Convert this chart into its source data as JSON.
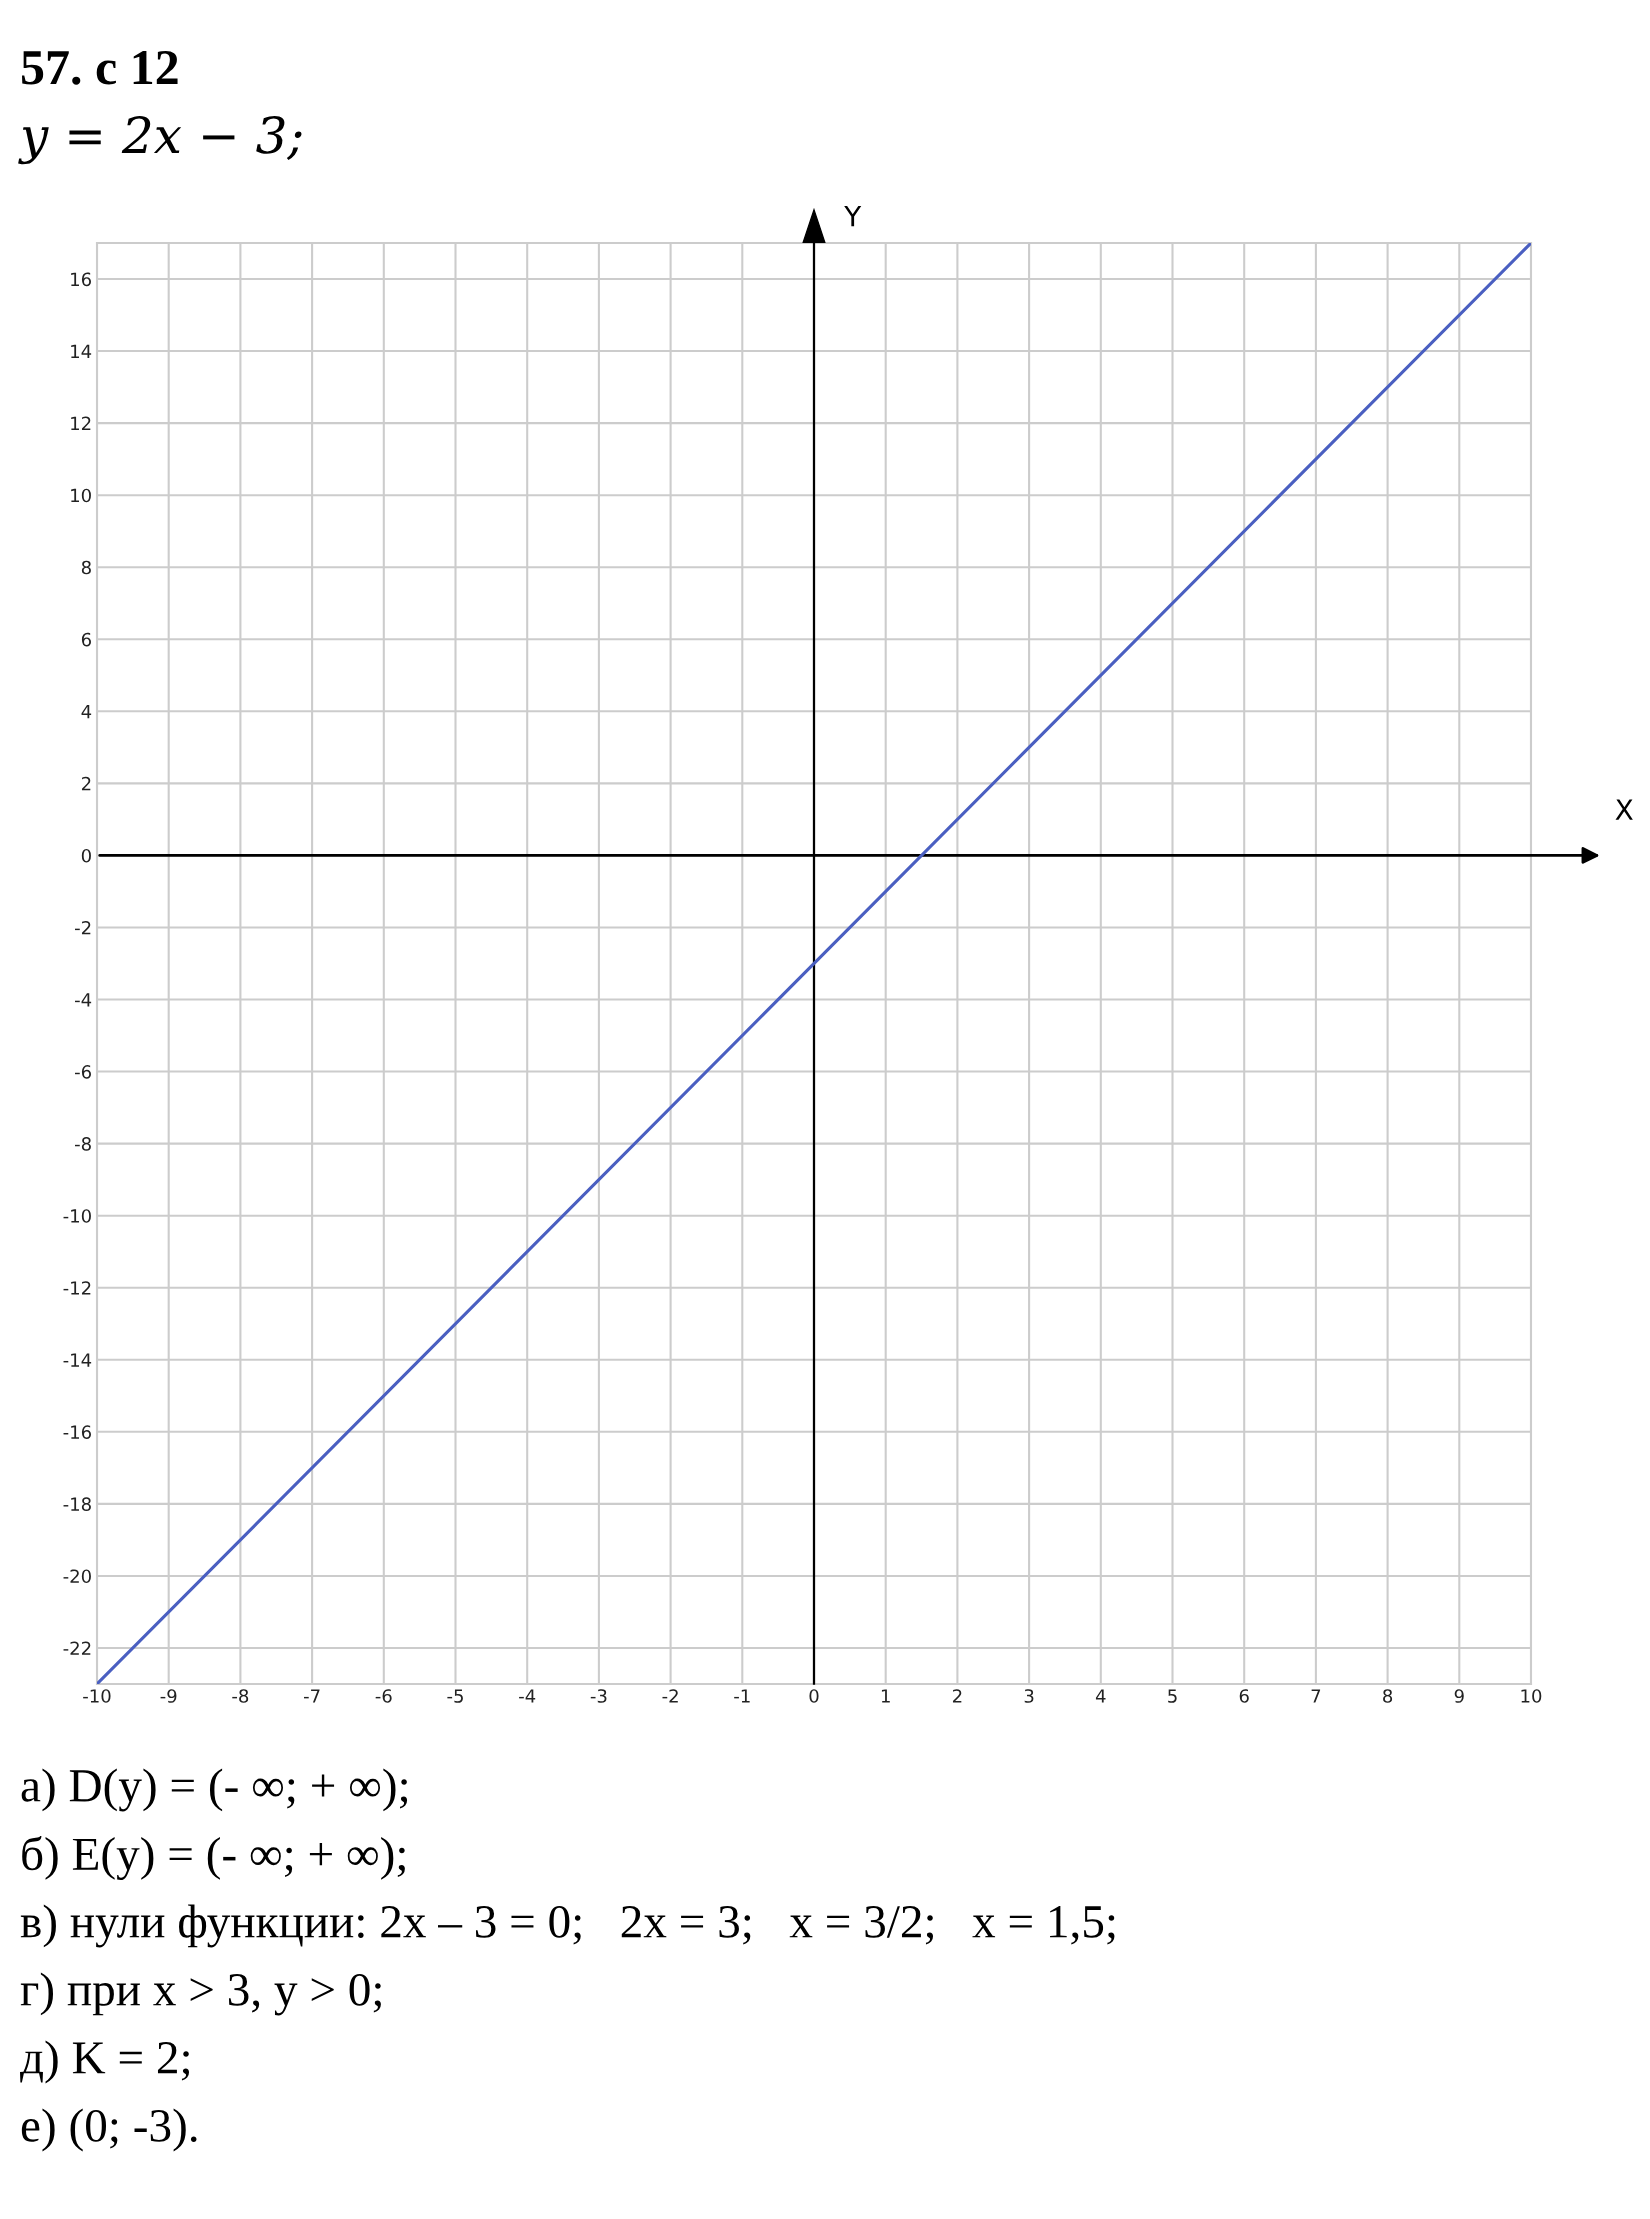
{
  "chart_data": {
    "type": "line",
    "title": "57. с 12",
    "subtitle": "y = 2x − 3;",
    "xlabel": "X",
    "ylabel": "Y",
    "x": [
      -10,
      10
    ],
    "series": [
      {
        "color": "#4a5fc1",
        "values": [
          -23,
          17
        ]
      }
    ],
    "xlim": [
      -10,
      10
    ],
    "ylim": [
      -23,
      17
    ],
    "xticks": [
      -10,
      -9,
      -8,
      -7,
      -6,
      -5,
      -4,
      -3,
      -2,
      -1,
      0,
      1,
      2,
      3,
      4,
      5,
      6,
      7,
      8,
      9,
      10
    ],
    "yticks": [
      -22,
      -20,
      -18,
      -16,
      -14,
      -12,
      -10,
      -8,
      -6,
      -4,
      -2,
      0,
      2,
      4,
      6,
      8,
      10,
      12,
      14,
      16
    ],
    "grid": true,
    "marker": "none",
    "line_style": "solid",
    "annotations": [
      "а) D(y) = (- ∞; + ∞);",
      "б) E(y) = (- ∞; + ∞);",
      "в) нули функции: 2x – 3 = 0;   2x = 3;   x = 3/2;   x = 1,5;",
      "г) при x > 3, y > 0;",
      "д) K = 2;",
      "е) (0; -3)."
    ]
  }
}
